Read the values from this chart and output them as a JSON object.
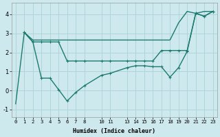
{
  "xlabel": "Humidex (Indice chaleur)",
  "bg_color": "#cee9ee",
  "line_color": "#1a7a6e",
  "grid_color": "#afd4da",
  "xlim": [
    -0.5,
    23.5
  ],
  "ylim": [
    -1.4,
    4.6
  ],
  "xticks": [
    0,
    1,
    2,
    3,
    4,
    5,
    6,
    7,
    8,
    10,
    11,
    13,
    14,
    15,
    16,
    17,
    18,
    19,
    20,
    21,
    22,
    23
  ],
  "xtick_labels": [
    "0",
    "1",
    "2",
    "3",
    "4",
    "5",
    "6",
    "7",
    "8",
    "10",
    "11",
    "13",
    "14",
    "15",
    "16",
    "17",
    "18",
    "19",
    "20",
    "21",
    "22",
    "23"
  ],
  "yticks": [
    -1,
    0,
    1,
    2,
    3,
    4
  ],
  "series": [
    {
      "x": [
        0,
        1,
        2,
        3,
        4,
        5,
        6,
        7,
        8,
        10,
        11,
        13,
        14,
        15,
        16,
        17,
        18,
        19,
        20,
        21,
        22,
        23
      ],
      "y": [
        -0.7,
        3.05,
        2.65,
        2.65,
        2.65,
        2.65,
        2.65,
        2.65,
        2.65,
        2.65,
        2.65,
        2.65,
        2.65,
        2.65,
        2.65,
        2.65,
        2.65,
        3.55,
        4.15,
        4.05,
        4.15,
        4.15
      ],
      "marker": false,
      "lw": 1.0
    },
    {
      "x": [
        1,
        2,
        3,
        4,
        5,
        6,
        7,
        8,
        10,
        11,
        13,
        14,
        15,
        16,
        17,
        18,
        19,
        20,
        21,
        22,
        23
      ],
      "y": [
        3.05,
        2.55,
        2.55,
        2.55,
        2.55,
        1.55,
        1.55,
        1.55,
        1.55,
        1.55,
        1.55,
        1.55,
        1.55,
        1.55,
        2.1,
        2.1,
        2.1,
        2.1,
        4.05,
        3.9,
        4.15
      ],
      "marker": true,
      "lw": 1.0
    },
    {
      "x": [
        1,
        2,
        3,
        4,
        5,
        6,
        7,
        8,
        10,
        11,
        13,
        14,
        15,
        16,
        17,
        18,
        19,
        20,
        21,
        22,
        23
      ],
      "y": [
        3.05,
        2.55,
        0.65,
        0.65,
        0.05,
        -0.55,
        -0.1,
        0.25,
        0.8,
        0.9,
        1.2,
        1.3,
        1.3,
        1.25,
        1.25,
        0.7,
        1.2,
        2.05,
        4.05,
        3.9,
        4.15
      ],
      "marker": true,
      "lw": 1.0
    }
  ]
}
